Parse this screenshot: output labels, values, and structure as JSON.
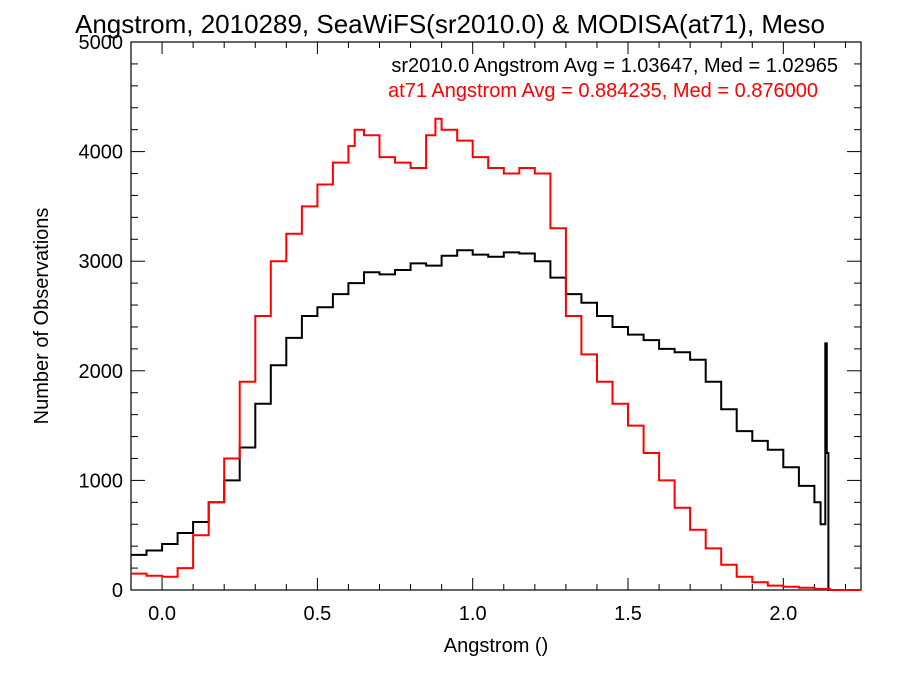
{
  "chart_data": {
    "type": "line",
    "title": "Angstrom, 2010289, SeaWiFS(sr2010.0) & MODISA(at71), Meso",
    "xlabel": "Angstrom ()",
    "ylabel": "Number of Observations",
    "xlim": [
      -0.1,
      2.25
    ],
    "ylim": [
      0,
      5000
    ],
    "xticks": [
      {
        "value": 0.0,
        "label": "0.0"
      },
      {
        "value": 0.5,
        "label": "0.5"
      },
      {
        "value": 1.0,
        "label": "1.0"
      },
      {
        "value": 1.5,
        "label": "1.5"
      },
      {
        "value": 2.0,
        "label": "2.0"
      }
    ],
    "yticks": [
      {
        "value": 0,
        "label": "0"
      },
      {
        "value": 1000,
        "label": "1000"
      },
      {
        "value": 2000,
        "label": "2000"
      },
      {
        "value": 3000,
        "label": "3000"
      },
      {
        "value": 4000,
        "label": "4000"
      },
      {
        "value": 5000,
        "label": "5000"
      }
    ],
    "grid": false,
    "legend": "top-right",
    "annotations": [
      {
        "text": "sr2010.0 Angstrom Avg = 1.03647, Med = 1.02965",
        "color": "#000000"
      },
      {
        "text": "at71 Angstrom Avg = 0.884235, Med = 0.876000",
        "color": "#ff0000"
      }
    ],
    "series": [
      {
        "color": "#000000",
        "x": [
          -0.1,
          -0.05,
          0.0,
          0.05,
          0.1,
          0.15,
          0.2,
          0.25,
          0.3,
          0.35,
          0.4,
          0.45,
          0.5,
          0.55,
          0.6,
          0.65,
          0.7,
          0.75,
          0.8,
          0.85,
          0.9,
          0.95,
          1.0,
          1.05,
          1.1,
          1.15,
          1.2,
          1.25,
          1.3,
          1.35,
          1.4,
          1.45,
          1.5,
          1.55,
          1.6,
          1.65,
          1.7,
          1.75,
          1.8,
          1.85,
          1.9,
          1.95,
          2.0,
          2.05,
          2.1,
          2.12,
          2.135,
          2.14,
          2.145,
          2.15,
          2.2,
          2.25
        ],
        "y": [
          320,
          360,
          420,
          520,
          620,
          800,
          1000,
          1300,
          1700,
          2050,
          2300,
          2500,
          2580,
          2700,
          2800,
          2900,
          2880,
          2920,
          2980,
          2960,
          3050,
          3100,
          3060,
          3040,
          3080,
          3070,
          3000,
          2850,
          2700,
          2620,
          2500,
          2400,
          2330,
          2280,
          2200,
          2170,
          2100,
          1900,
          1650,
          1450,
          1360,
          1280,
          1120,
          950,
          800,
          600,
          2250,
          1250,
          0,
          0,
          0,
          0
        ]
      },
      {
        "color": "#ff0000",
        "x": [
          -0.1,
          -0.05,
          0.0,
          0.05,
          0.1,
          0.15,
          0.2,
          0.25,
          0.3,
          0.35,
          0.4,
          0.45,
          0.5,
          0.55,
          0.6,
          0.62,
          0.65,
          0.7,
          0.75,
          0.8,
          0.85,
          0.88,
          0.9,
          0.95,
          1.0,
          1.05,
          1.1,
          1.15,
          1.2,
          1.25,
          1.3,
          1.35,
          1.4,
          1.45,
          1.5,
          1.55,
          1.6,
          1.65,
          1.7,
          1.75,
          1.8,
          1.85,
          1.9,
          1.95,
          2.0,
          2.05,
          2.1,
          2.15,
          2.2,
          2.25
        ],
        "y": [
          150,
          130,
          120,
          200,
          500,
          800,
          1200,
          1900,
          2500,
          3000,
          3250,
          3500,
          3700,
          3900,
          4050,
          4200,
          4150,
          3950,
          3900,
          3850,
          4150,
          4300,
          4200,
          4100,
          3950,
          3850,
          3800,
          3850,
          3800,
          3300,
          2500,
          2150,
          1900,
          1700,
          1500,
          1250,
          1000,
          750,
          550,
          380,
          230,
          120,
          70,
          40,
          30,
          20,
          10,
          0,
          0,
          0
        ]
      }
    ]
  }
}
